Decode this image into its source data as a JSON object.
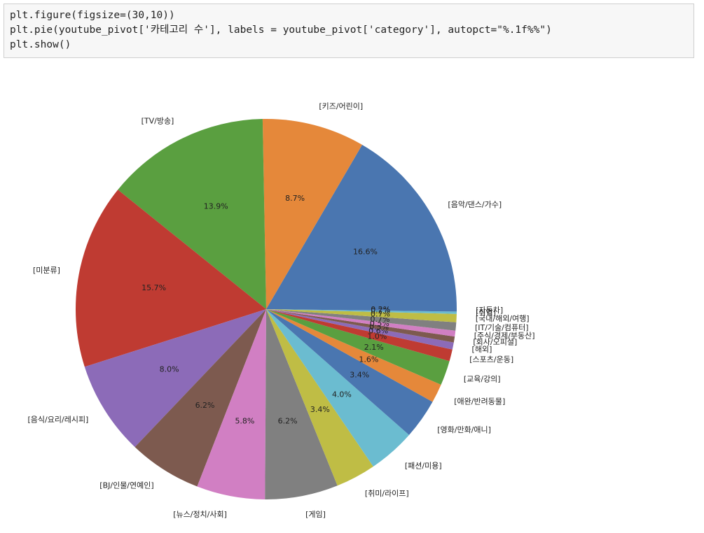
{
  "code": [
    "plt.figure(figsize=(30,10))",
    "plt.pie(youtube_pivot['카테고리 수'], labels = youtube_pivot['category'], autopct=\"%.1f%%\")",
    "plt.show()"
  ],
  "chart_data": {
    "type": "pie",
    "categories": [
      "[음악/댄스/가수]",
      "[키즈/어린이]",
      "[TV/방송]",
      "[미분류]",
      "[음식/요리/레시피]",
      "[BJ/인물/연예인]",
      "[뉴스/정치/사회]",
      "[게임]",
      "[취미/라이프]",
      "[패션/미용]",
      "[영화/만화/애니]",
      "[애완/반려동물]",
      "[교육/강의]",
      "[스포츠/운동]",
      "[해외]",
      "[회사/오피셜]",
      "[주식/경제/부동산]",
      "[IT/기술/컴퓨터]",
      "[국내/해외/여행]",
      "[취업]",
      "[자동차]"
    ],
    "values": [
      16.6,
      8.7,
      13.9,
      15.7,
      8.0,
      6.2,
      5.8,
      6.2,
      3.4,
      4.0,
      3.4,
      1.6,
      2.1,
      1.0,
      0.6,
      0.5,
      0.5,
      0.7,
      0.7,
      0.2,
      0.2
    ],
    "value_labels": [
      "16.6%",
      "8.7%",
      "13.9%",
      "15.7%",
      "8.0%",
      "6.2%",
      "5.8%",
      "6.2%",
      "3.4%",
      "4.0%",
      "3.4%",
      "1.6%",
      "2.1%",
      "1.0%",
      "0.6%",
      "0.5%",
      "0.5%",
      "0.7%",
      "0.7%",
      "0.2%",
      "0.2%"
    ],
    "colors": [
      "#4a76b0",
      "#e5883a",
      "#5a9f40",
      "#bf3b32",
      "#8c6bb8",
      "#7d5a4f",
      "#d17fc3",
      "#808080",
      "#bfbd45",
      "#6bbcd0",
      "#4a76b0",
      "#e5883a",
      "#5a9f40",
      "#bf3b32",
      "#8c6bb8",
      "#7d5a4f",
      "#d17fc3",
      "#808080",
      "#bfbd45",
      "#6bbcd0",
      "#4a76b0"
    ]
  }
}
